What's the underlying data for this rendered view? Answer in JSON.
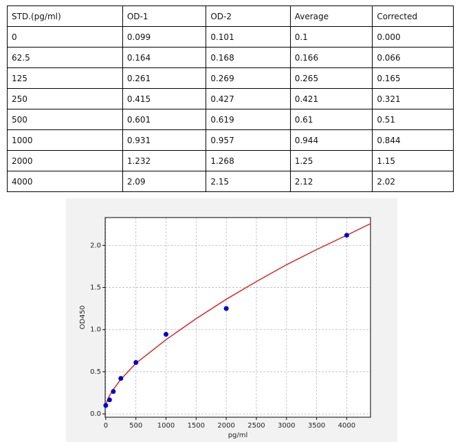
{
  "table": {
    "header": [
      "STD.(pg/ml)",
      "OD-1",
      "OD-2",
      "Average",
      "Corrected"
    ],
    "rows": [
      [
        "0",
        "0.099",
        "0.101",
        "0.1",
        "0.000"
      ],
      [
        "62.5",
        "0.164",
        "0.168",
        "0.166",
        "0.066"
      ],
      [
        "125",
        "0.261",
        "0.269",
        "0.265",
        "0.165"
      ],
      [
        "250",
        "0.415",
        "0.427",
        "0.421",
        "0.321"
      ],
      [
        "500",
        "0.601",
        "0.619",
        "0.61",
        "0.51"
      ],
      [
        "1000",
        "0.931",
        "0.957",
        "0.944",
        "0.844"
      ],
      [
        "2000",
        "1.232",
        "1.268",
        "1.25",
        "1.15"
      ],
      [
        "4000",
        "2.09",
        "2.15",
        "2.12",
        "2.02"
      ]
    ]
  },
  "chart_data": {
    "type": "scatter",
    "xlabel": "pg/ml",
    "ylabel": "OD450",
    "series": [
      {
        "type": "scatter",
        "color": "#0000cc",
        "x": [
          0,
          62.5,
          125,
          250,
          500,
          1000,
          2000,
          4000
        ],
        "values": [
          0.1,
          0.166,
          0.265,
          0.421,
          0.61,
          0.944,
          1.25,
          2.12
        ]
      },
      {
        "type": "line",
        "color": "#d62728",
        "x": [
          0,
          50,
          125,
          250,
          500,
          1000,
          1500,
          2000,
          2500,
          3000,
          3500,
          4000,
          4400
        ],
        "values": [
          0.11,
          0.2,
          0.29,
          0.41,
          0.6,
          0.88,
          1.13,
          1.36,
          1.57,
          1.77,
          1.95,
          2.12,
          2.26
        ]
      }
    ],
    "xlim": [
      -10,
      4395
    ],
    "ylim": [
      -0.04,
      2.33
    ],
    "xticks": [
      0,
      500,
      1000,
      1500,
      2000,
      2500,
      3000,
      3500,
      4000
    ],
    "yticks": [
      {
        "value": 0,
        "label": "0.0"
      },
      0.5,
      {
        "value": 1,
        "label": "1.0"
      },
      1.5,
      {
        "value": 2,
        "label": "2.0"
      }
    ],
    "grid": true
  }
}
